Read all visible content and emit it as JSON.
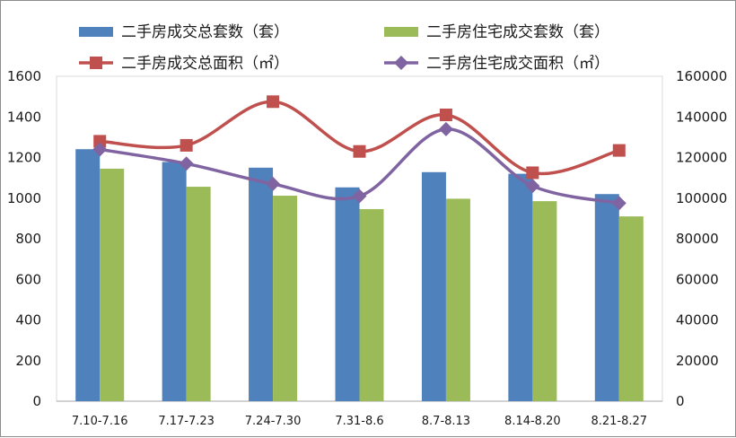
{
  "chart_data": {
    "type": "bar",
    "categories": [
      "7.10-7.16",
      "7.17-7.23",
      "7.24-7.30",
      "7.31-8.6",
      "8.7-8.13",
      "8.14-8.20",
      "8.21-8.27"
    ],
    "series": [
      {
        "name": "二手房成交总套数（套）",
        "kind": "bar",
        "axis": "left",
        "color": "#4f81bd",
        "values": [
          1241,
          1178,
          1150,
          1053,
          1128,
          1120,
          1020
        ]
      },
      {
        "name": "二手房住宅成交套数（套）",
        "kind": "bar",
        "axis": "left",
        "color": "#9bbb59",
        "values": [
          1145,
          1056,
          1012,
          946,
          997,
          985,
          910
        ]
      },
      {
        "name": "二手房成交总面积（㎡）",
        "kind": "line",
        "axis": "right",
        "color": "#c0504d",
        "marker": "square",
        "values": [
          128000,
          126000,
          147500,
          123000,
          141000,
          112500,
          123500
        ]
      },
      {
        "name": "二手房住宅成交面积（㎡）",
        "kind": "line",
        "axis": "right",
        "color": "#8064a2",
        "marker": "diamond",
        "values": [
          124000,
          117000,
          107000,
          101000,
          134000,
          106000,
          97500
        ]
      }
    ],
    "y_left": {
      "min": 0,
      "max": 1600,
      "ticks": [
        "0",
        "200",
        "400",
        "600",
        "800",
        "1000",
        "1200",
        "1400",
        "1600"
      ]
    },
    "y_right": {
      "min": 0,
      "max": 160000,
      "ticks": [
        "0",
        "20000",
        "40000",
        "60000",
        "80000",
        "100000",
        "120000",
        "140000",
        "160000"
      ]
    },
    "ylim": [
      0,
      1600
    ],
    "y2lim": [
      0,
      160000
    ],
    "grid": false,
    "legend_position": "top"
  }
}
